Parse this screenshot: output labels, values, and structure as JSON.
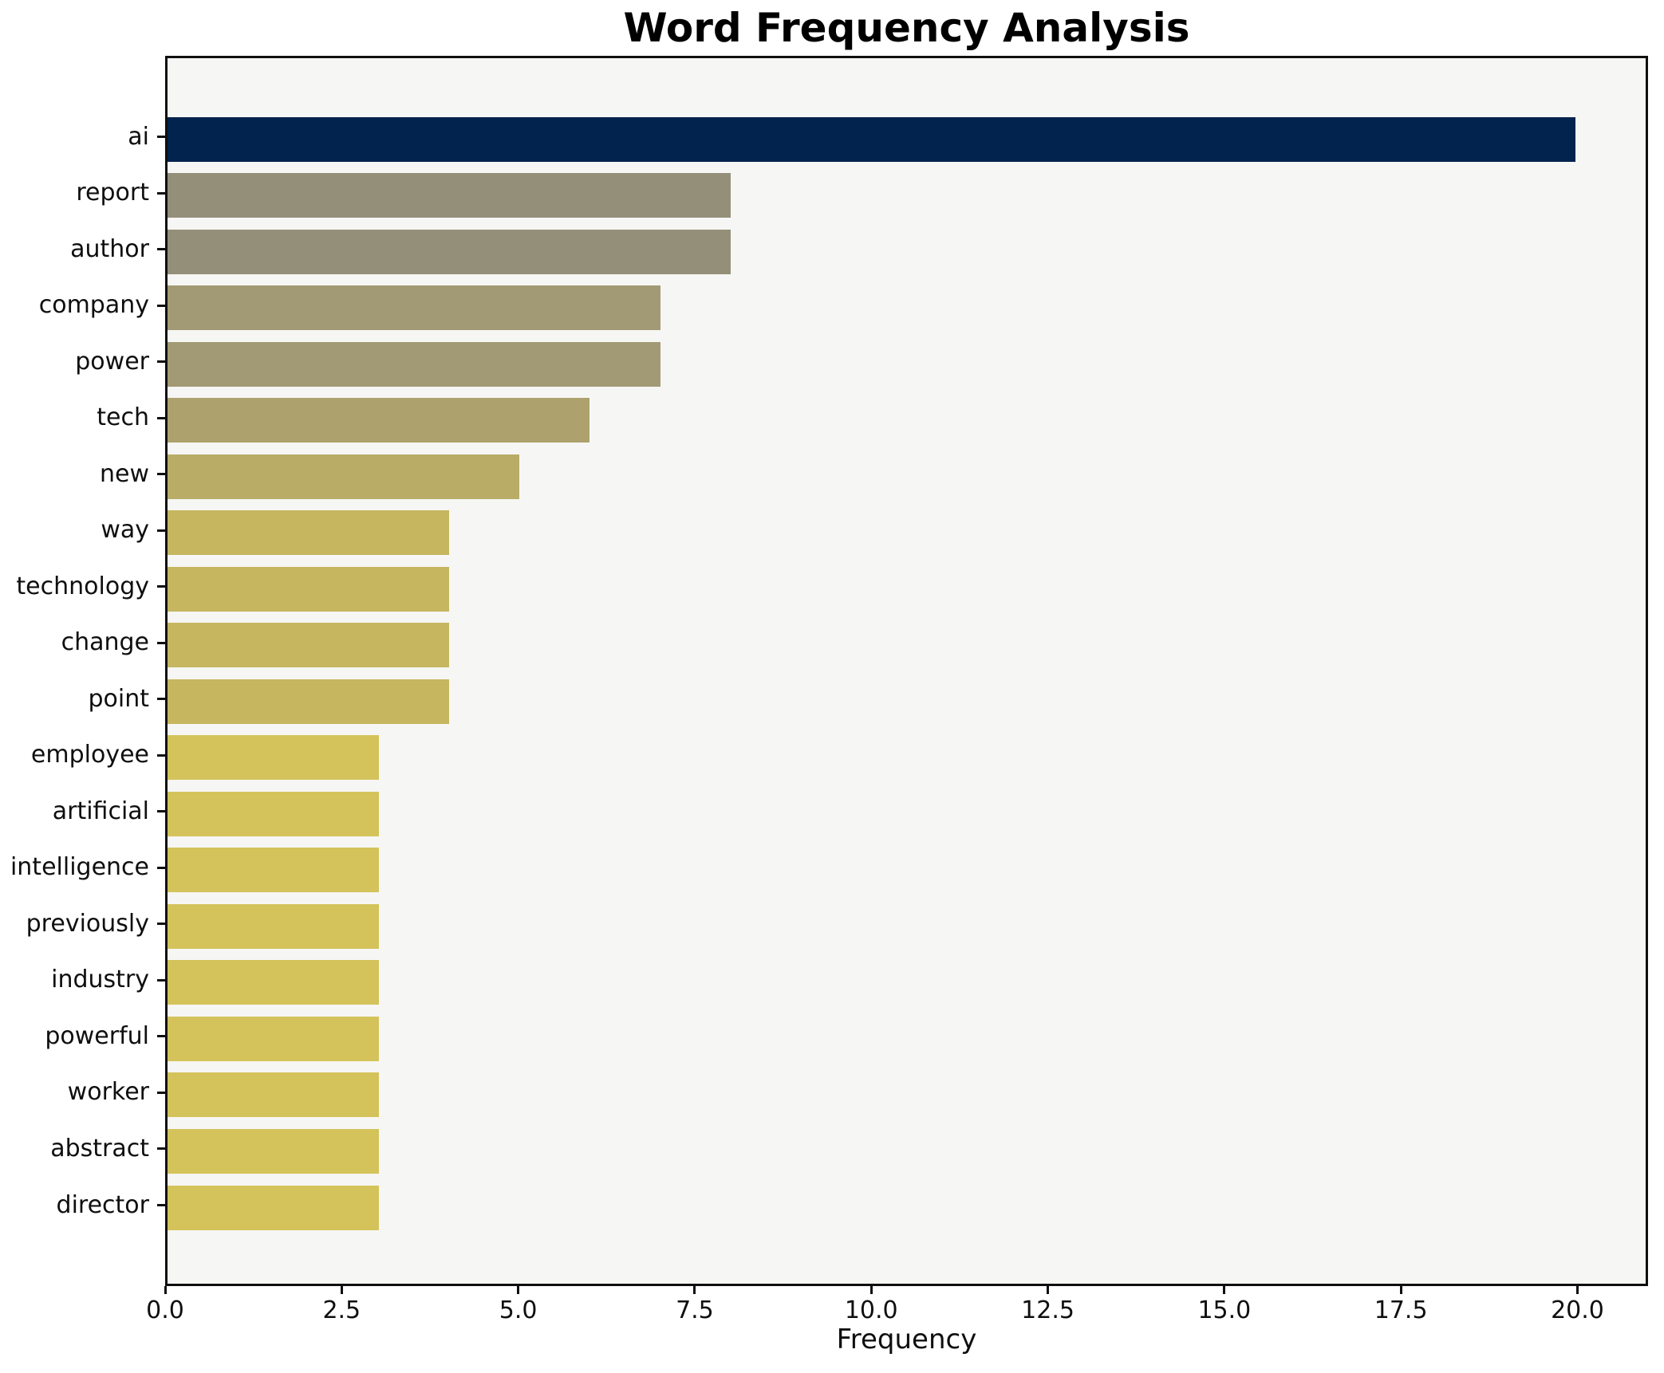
{
  "chart_data": {
    "type": "bar",
    "orientation": "horizontal",
    "title": "Word Frequency Analysis",
    "xlabel": "Frequency",
    "ylabel": "",
    "grid": false,
    "legend": null,
    "plot_background": "#f6f6f4",
    "figure_background": "#ffffff",
    "spine_color": "#0f0f0f",
    "xlim": [
      0,
      21
    ],
    "xticks": [
      "0.0",
      "2.5",
      "5.0",
      "7.5",
      "10.0",
      "12.5",
      "15.0",
      "17.5",
      "20.0"
    ],
    "xtick_values": [
      0,
      2.5,
      5,
      7.5,
      10,
      12.5,
      15,
      17.5,
      20
    ],
    "categories": [
      "ai",
      "report",
      "author",
      "company",
      "power",
      "tech",
      "new",
      "way",
      "technology",
      "change",
      "point",
      "employee",
      "artificial",
      "intelligence",
      "previously",
      "industry",
      "powerful",
      "worker",
      "abstract",
      "director"
    ],
    "values": [
      20,
      8,
      8,
      7,
      7,
      6,
      5,
      4,
      4,
      4,
      4,
      3,
      3,
      3,
      3,
      3,
      3,
      3,
      3,
      3
    ],
    "bar_colors": [
      "#01234e",
      "#938f79",
      "#938f79",
      "#a29a74",
      "#a29a74",
      "#ada26e",
      "#b8ac67",
      "#c6b65f",
      "#c6b65f",
      "#c6b65f",
      "#c6b65f",
      "#d4c35b",
      "#d4c35b",
      "#d4c35b",
      "#d4c35b",
      "#d4c35b",
      "#d4c35b",
      "#d4c35b",
      "#d4c35b",
      "#d4c35b"
    ]
  }
}
